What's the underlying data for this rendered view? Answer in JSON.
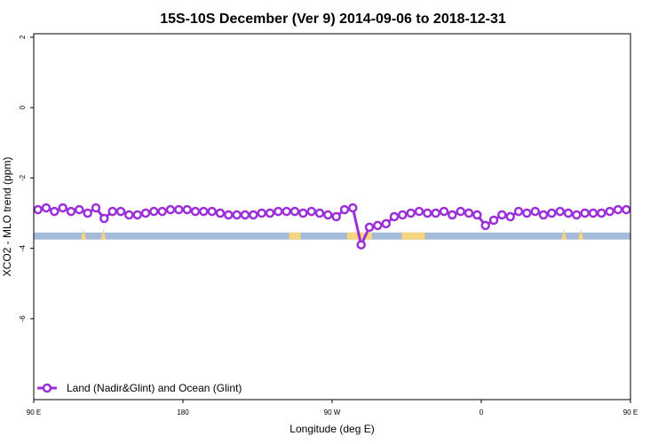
{
  "chart_data": {
    "type": "line",
    "title": "15S-10S December (Ver 9)   2014-09-06 to 2018-12-31",
    "xlabel": "Longitude (deg E)",
    "ylabel": "XCO2 - MLO trend (ppm)",
    "xlim": [
      0,
      360
    ],
    "ylim": [
      -8.3,
      2.1
    ],
    "x_ticks": [
      {
        "pos": 0,
        "label": "90 E"
      },
      {
        "pos": 90,
        "label": "180"
      },
      {
        "pos": 180,
        "label": "90 W"
      },
      {
        "pos": 270,
        "label": "0"
      },
      {
        "pos": 360,
        "label": "90 E"
      }
    ],
    "y_ticks": [
      2,
      0,
      -2,
      -4,
      -6
    ],
    "legend": {
      "position": "bottom-left"
    },
    "colors": {
      "series": "#9b30d9",
      "ocean": "#a4bcd9",
      "land": "#f5d580"
    },
    "series": [
      {
        "name": "Land (Nadir&Glint) and Ocean (Glint)",
        "x": [
          2.5,
          7.5,
          12.5,
          17.5,
          22.5,
          27.5,
          32.5,
          37.5,
          42.5,
          47.5,
          52.5,
          57.5,
          62.5,
          67.5,
          72.5,
          77.5,
          82.5,
          87.5,
          92.5,
          97.5,
          102.5,
          107.5,
          112.5,
          117.5,
          122.5,
          127.5,
          132.5,
          137.5,
          142.5,
          147.5,
          152.5,
          157.5,
          162.5,
          167.5,
          172.5,
          177.5,
          182.5,
          187.5,
          192.5,
          197.5,
          202.5,
          207.5,
          212.5,
          217.5,
          222.5,
          227.5,
          232.5,
          237.5,
          242.5,
          247.5,
          252.5,
          257.5,
          262.5,
          267.5,
          272.5,
          277.5,
          282.5,
          287.5,
          292.5,
          297.5,
          302.5,
          307.5,
          312.5,
          317.5,
          322.5,
          327.5,
          332.5,
          337.5,
          342.5,
          347.5,
          352.5,
          357.5
        ],
        "values": [
          -2.9,
          -2.85,
          -2.95,
          -2.85,
          -2.95,
          -2.9,
          -3.0,
          -2.85,
          -3.15,
          -2.95,
          -2.95,
          -3.05,
          -3.05,
          -3.0,
          -2.95,
          -2.95,
          -2.9,
          -2.9,
          -2.9,
          -2.95,
          -2.95,
          -2.95,
          -3.0,
          -3.05,
          -3.05,
          -3.05,
          -3.05,
          -3.0,
          -3.0,
          -2.95,
          -2.95,
          -2.95,
          -3.0,
          -2.95,
          -3.0,
          -3.05,
          -3.1,
          -2.9,
          -2.85,
          -3.9,
          -3.4,
          -3.35,
          -3.3,
          -3.1,
          -3.05,
          -3.0,
          -2.95,
          -3.0,
          -3.0,
          -2.95,
          -3.05,
          -2.95,
          -3.0,
          -3.05,
          -3.35,
          -3.2,
          -3.05,
          -3.1,
          -2.95,
          -3.0,
          -2.95,
          -3.05,
          -3.0,
          -2.95,
          -3.0,
          -3.05,
          -3.0,
          -3.0,
          -3.0,
          -2.95,
          -2.9,
          -2.9
        ]
      }
    ],
    "surface_band": {
      "y_top": -3.55,
      "y_bottom": -3.75,
      "land_ranges": [
        [
          154,
          161
        ],
        [
          189,
          204
        ],
        [
          222,
          236
        ]
      ],
      "land_spikes": [
        30,
        42,
        320,
        330
      ]
    }
  }
}
